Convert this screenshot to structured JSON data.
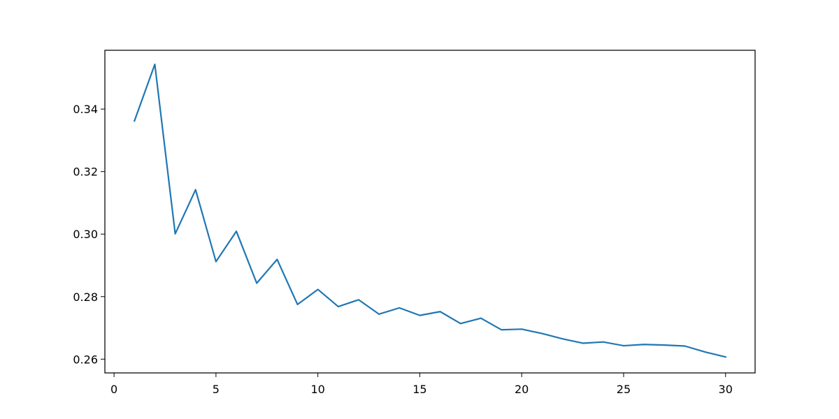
{
  "chart_data": {
    "type": "line",
    "title": "",
    "xlabel": "",
    "ylabel": "",
    "xlim": [
      -0.45,
      31.45
    ],
    "ylim": [
      0.2556,
      0.3588
    ],
    "grid": false,
    "legend": "none",
    "x_ticks": [
      0,
      5,
      10,
      15,
      20,
      25,
      30
    ],
    "x_tick_labels": [
      "0",
      "5",
      "10",
      "15",
      "20",
      "25",
      "30"
    ],
    "y_ticks": [
      0.26,
      0.28,
      0.3,
      0.32,
      0.34
    ],
    "y_tick_labels": [
      "0.26",
      "0.28",
      "0.30",
      "0.32",
      "0.34"
    ],
    "series": [
      {
        "name": "series-1",
        "color": "#1f77b4",
        "x": [
          1,
          2,
          3,
          4,
          5,
          6,
          7,
          8,
          9,
          10,
          11,
          12,
          13,
          14,
          15,
          16,
          17,
          18,
          19,
          20,
          21,
          22,
          23,
          24,
          25,
          26,
          27,
          28,
          29,
          30
        ],
        "values": [
          0.3362,
          0.3543,
          0.3001,
          0.3142,
          0.2912,
          0.3009,
          0.2843,
          0.2919,
          0.2775,
          0.2823,
          0.2768,
          0.279,
          0.2744,
          0.2764,
          0.274,
          0.2752,
          0.2714,
          0.2731,
          0.2694,
          0.2696,
          0.2682,
          0.2665,
          0.2651,
          0.2655,
          0.2643,
          0.2647,
          0.2645,
          0.2642,
          0.2623,
          0.2607
        ]
      }
    ]
  }
}
